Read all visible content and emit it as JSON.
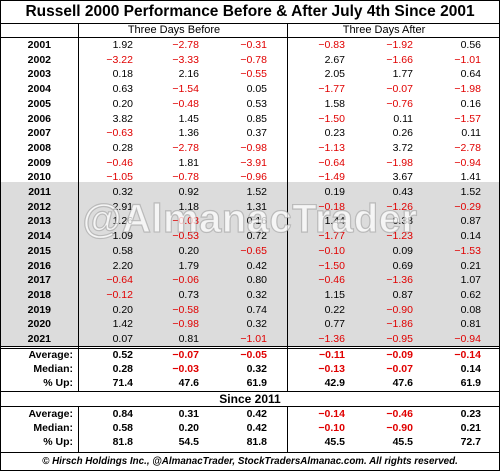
{
  "title": "Russell 2000 Performance Before & After July 4th Since 2001",
  "header": {
    "before": "Three Days Before",
    "after": "Three Days After"
  },
  "rows": [
    {
      "year": "2001",
      "v": [
        "1.92",
        "−2.78",
        "−0.31",
        "−0.83",
        "−1.92",
        "0.56"
      ]
    },
    {
      "year": "2002",
      "v": [
        "−3.22",
        "−3.33",
        "−0.78",
        "2.67",
        "−1.66",
        "−1.01"
      ]
    },
    {
      "year": "2003",
      "v": [
        "0.18",
        "2.16",
        "−0.55",
        "2.05",
        "1.77",
        "0.64"
      ]
    },
    {
      "year": "2004",
      "v": [
        "0.63",
        "−1.54",
        "0.05",
        "−1.77",
        "−0.07",
        "−1.98"
      ]
    },
    {
      "year": "2005",
      "v": [
        "0.20",
        "−0.48",
        "0.53",
        "1.58",
        "−0.76",
        "0.16"
      ]
    },
    {
      "year": "2006",
      "v": [
        "3.82",
        "1.45",
        "0.85",
        "−1.50",
        "0.11",
        "−1.57"
      ]
    },
    {
      "year": "2007",
      "v": [
        "−0.63",
        "1.36",
        "0.37",
        "0.23",
        "0.26",
        "0.11"
      ]
    },
    {
      "year": "2008",
      "v": [
        "0.28",
        "−2.78",
        "−0.98",
        "−1.13",
        "3.72",
        "−2.78"
      ]
    },
    {
      "year": "2009",
      "v": [
        "−0.46",
        "1.81",
        "−3.91",
        "−0.64",
        "−1.98",
        "−0.94"
      ]
    },
    {
      "year": "2010",
      "v": [
        "−1.05",
        "−0.78",
        "−0.96",
        "−1.49",
        "3.67",
        "1.41"
      ]
    },
    {
      "year": "2011",
      "v": [
        "0.32",
        "0.92",
        "1.52",
        "0.19",
        "0.43",
        "1.52"
      ]
    },
    {
      "year": "2012",
      "v": [
        "2.91",
        "1.18",
        "1.31",
        "−0.18",
        "−1.26",
        "−0.29"
      ]
    },
    {
      "year": "2013",
      "v": [
        "1.26",
        "−0.03",
        "0.16",
        "1.44",
        "0.38",
        "0.87"
      ]
    },
    {
      "year": "2014",
      "v": [
        "1.09",
        "−0.53",
        "0.72",
        "−1.77",
        "−1.23",
        "0.14"
      ]
    },
    {
      "year": "2015",
      "v": [
        "0.58",
        "0.20",
        "−0.65",
        "−0.10",
        "0.09",
        "−1.53"
      ]
    },
    {
      "year": "2016",
      "v": [
        "2.20",
        "1.79",
        "0.42",
        "−1.50",
        "0.69",
        "0.21"
      ]
    },
    {
      "year": "2017",
      "v": [
        "−0.64",
        "−0.06",
        "0.80",
        "−0.46",
        "−1.36",
        "1.07"
      ]
    },
    {
      "year": "2018",
      "v": [
        "−0.12",
        "0.73",
        "0.32",
        "1.15",
        "0.87",
        "0.62"
      ]
    },
    {
      "year": "2019",
      "v": [
        "0.20",
        "−0.58",
        "0.74",
        "0.22",
        "−0.90",
        "0.08"
      ]
    },
    {
      "year": "2020",
      "v": [
        "1.42",
        "−0.98",
        "0.32",
        "0.77",
        "−1.86",
        "0.81"
      ]
    },
    {
      "year": "2021",
      "v": [
        "0.07",
        "0.81",
        "−1.01",
        "−1.36",
        "−0.95",
        "−0.94"
      ]
    }
  ],
  "summary_all": [
    {
      "label": "Average:",
      "v": [
        "0.52",
        "−0.07",
        "−0.05",
        "−0.11",
        "−0.09",
        "−0.14"
      ]
    },
    {
      "label": "Median:",
      "v": [
        "0.28",
        "−0.03",
        "0.32",
        "−0.13",
        "−0.07",
        "0.14"
      ]
    },
    {
      "label": "% Up:",
      "v": [
        "71.4",
        "47.6",
        "61.9",
        "42.9",
        "47.6",
        "61.9"
      ]
    }
  ],
  "since_label": "Since 2011",
  "summary_since": [
    {
      "label": "Average:",
      "v": [
        "0.84",
        "0.31",
        "0.42",
        "−0.14",
        "−0.46",
        "0.23"
      ]
    },
    {
      "label": "Median:",
      "v": [
        "0.58",
        "0.20",
        "0.42",
        "−0.10",
        "−0.90",
        "0.21"
      ]
    },
    {
      "label": "% Up:",
      "v": [
        "81.8",
        "54.5",
        "81.8",
        "45.5",
        "45.5",
        "72.7"
      ]
    }
  ],
  "footer": "© Hirsch Holdings Inc., @AlmanacTrader, StockTradersAlmanac.com. All rights reserved.",
  "watermark": "@AlmanacTrader",
  "colors": {
    "negative": "#e00000",
    "shade": "#dcdcdc"
  }
}
